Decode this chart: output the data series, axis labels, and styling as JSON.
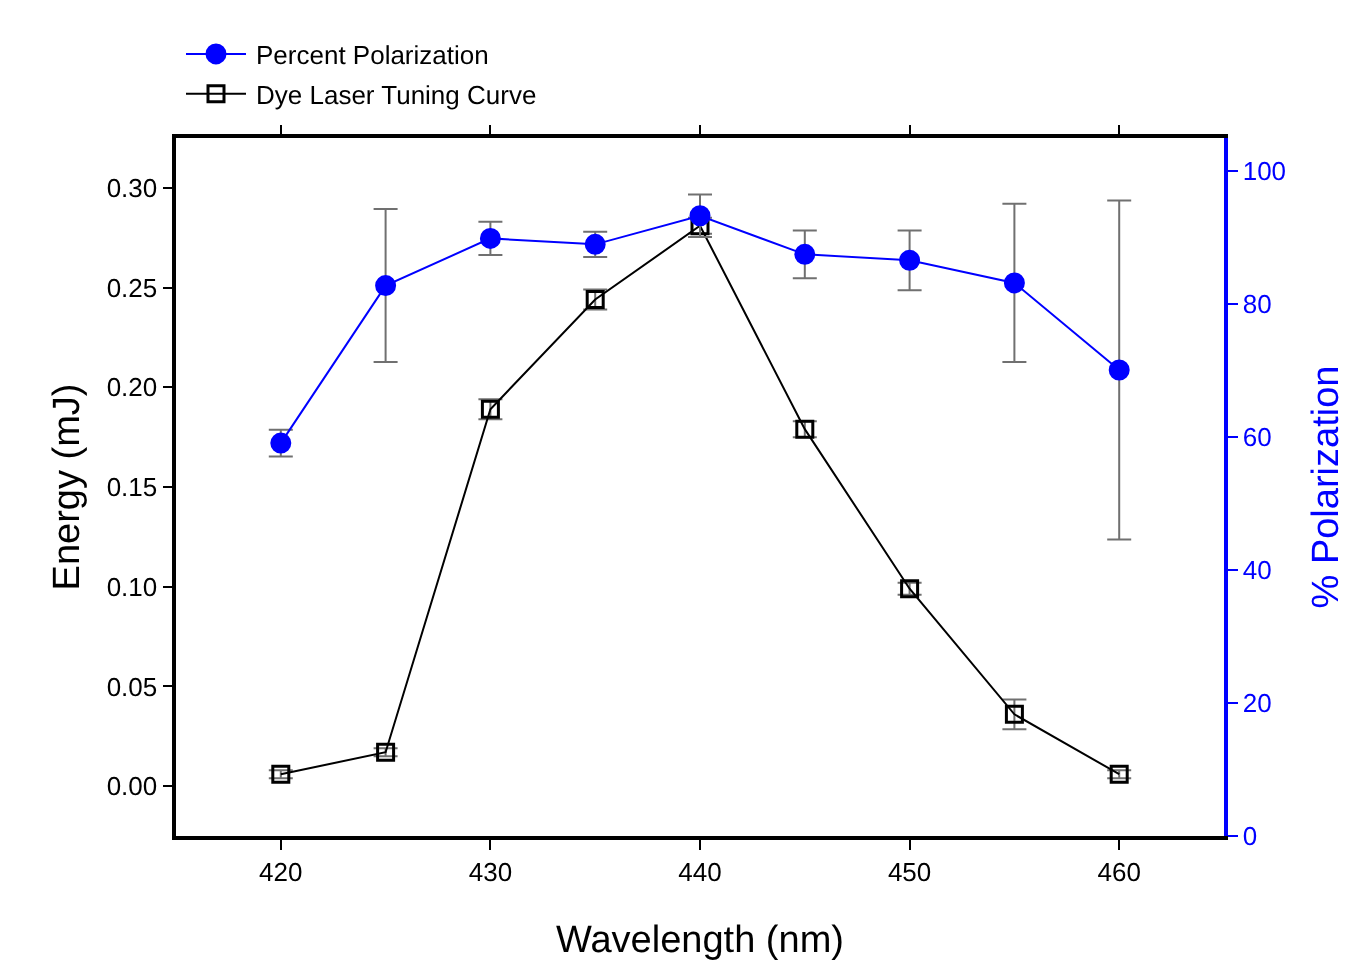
{
  "chart_data": {
    "type": "line",
    "xlabel": "Wavelength (nm)",
    "ylabel": "Energy (mJ)",
    "y2label": "% Polarization",
    "x": [
      420,
      425,
      430,
      435,
      440,
      445,
      450,
      455,
      460
    ],
    "xlim": [
      415,
      465
    ],
    "xticks": [
      420,
      430,
      440,
      450,
      460
    ],
    "ylim": [
      -0.025,
      0.325
    ],
    "yticks": [
      {
        "value": 0,
        "label": "0.00"
      },
      {
        "value": 0.05,
        "label": "0.05"
      },
      {
        "value": 0.1,
        "label": "0.10"
      },
      {
        "value": 0.15,
        "label": "0.15"
      },
      {
        "value": 0.2,
        "label": "0.20"
      },
      {
        "value": 0.25,
        "label": "0.25"
      },
      {
        "value": 0.3,
        "label": "0.30"
      }
    ],
    "y2lim": [
      0,
      105
    ],
    "y2ticks": [
      0,
      20,
      40,
      60,
      80,
      100
    ],
    "grid": false,
    "legend": "top left",
    "line_style": "solid",
    "series": [
      {
        "name": "Percent Polarization",
        "color": "#0000ff",
        "axis": "y2",
        "marker": "circle",
        "values": [
          59.1,
          82.8,
          89.9,
          89.0,
          93.3,
          87.5,
          86.6,
          83.2,
          70.1
        ],
        "errors": [
          2,
          11.5,
          2.5,
          1.9,
          3.2,
          3.6,
          4.5,
          11.9,
          25.5
        ]
      },
      {
        "name": "Dye Laser Tuning Curve",
        "color": "#000000",
        "marker": "square",
        "values": [
          0.006,
          0.017,
          0.189,
          0.244,
          0.281,
          0.179,
          0.099,
          0.036,
          0.006
        ],
        "errors": [
          0.002,
          0.002,
          0.005,
          0.005,
          0.004,
          0.004,
          0.003,
          0.0075,
          0.002
        ]
      }
    ]
  }
}
